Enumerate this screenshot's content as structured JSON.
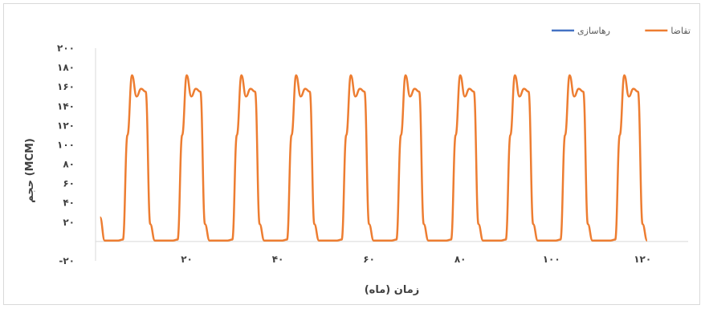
{
  "chart_data": {
    "type": "line",
    "xlabel": "زمان (ماه)",
    "ylabel": "حجم (MCM)",
    "xlim": [
      0,
      130
    ],
    "ylim": [
      -20,
      200
    ],
    "xticks": [
      20,
      40,
      60,
      80,
      100,
      120
    ],
    "xtick_labels": [
      "۲۰",
      "۴۰",
      "۶۰",
      "۸۰",
      "۱۰۰",
      "۱۲۰"
    ],
    "yticks": [
      -20,
      20,
      40,
      60,
      80,
      100,
      120,
      140,
      160,
      180,
      200
    ],
    "ytick_labels": [
      "-۲۰",
      "۲۰",
      "۴۰",
      "۶۰",
      "۸۰",
      "۱۰۰",
      "۱۲۰",
      "۱۴۰",
      "۱۶۰",
      "۱۸۰",
      "۲۰۰"
    ],
    "grid": false,
    "legend_position": "top-right",
    "series": [
      {
        "name": "رهاسازی",
        "color": "#4472C4",
        "values": []
      },
      {
        "name": "تقاضا",
        "color": "#ED7D31",
        "pattern": {
          "period": 12,
          "cycles": 10,
          "monthly_values": [
            1,
            1,
            1,
            1,
            2,
            110,
            172,
            150,
            158,
            155,
            18,
            1
          ]
        },
        "initial_value": 25
      }
    ]
  }
}
